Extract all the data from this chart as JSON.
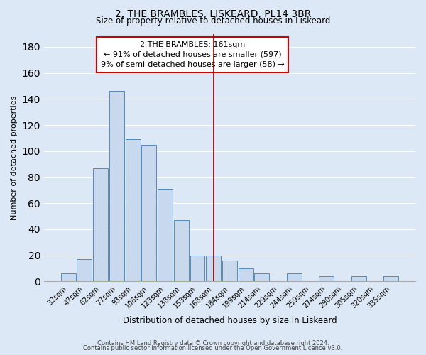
{
  "title1": "2, THE BRAMBLES, LISKEARD, PL14 3BR",
  "title2": "Size of property relative to detached houses in Liskeard",
  "xlabel": "Distribution of detached houses by size in Liskeard",
  "ylabel": "Number of detached properties",
  "bar_labels": [
    "32sqm",
    "47sqm",
    "62sqm",
    "77sqm",
    "93sqm",
    "108sqm",
    "123sqm",
    "138sqm",
    "153sqm",
    "168sqm",
    "184sqm",
    "199sqm",
    "214sqm",
    "229sqm",
    "244sqm",
    "259sqm",
    "274sqm",
    "290sqm",
    "305sqm",
    "320sqm",
    "335sqm"
  ],
  "bar_values": [
    6,
    17,
    87,
    146,
    109,
    105,
    71,
    47,
    20,
    20,
    16,
    10,
    6,
    0,
    6,
    0,
    4,
    0,
    4,
    0,
    4
  ],
  "bar_color": "#c8d9ee",
  "bar_edge_color": "#5588bb",
  "vline_x": 9.0,
  "vline_color": "#880000",
  "annotation_title": "2 THE BRAMBLES: 161sqm",
  "annotation_line1": "← 91% of detached houses are smaller (597)",
  "annotation_line2": "9% of semi-detached houses are larger (58) →",
  "annotation_box_color": "white",
  "annotation_box_edge": "#cc0000",
  "ylim": [
    0,
    190
  ],
  "yticks": [
    0,
    20,
    40,
    60,
    80,
    100,
    120,
    140,
    160,
    180
  ],
  "footnote1": "Contains HM Land Registry data © Crown copyright and database right 2024.",
  "footnote2": "Contains public sector information licensed under the Open Government Licence v3.0.",
  "bg_color": "#dce8f5",
  "grid_color": "#ffffff",
  "title1_fontsize": 10,
  "title2_fontsize": 8.5,
  "xlabel_fontsize": 8.5,
  "ylabel_fontsize": 8,
  "tick_fontsize": 7,
  "annotation_fontsize": 8,
  "footnote_fontsize": 6
}
